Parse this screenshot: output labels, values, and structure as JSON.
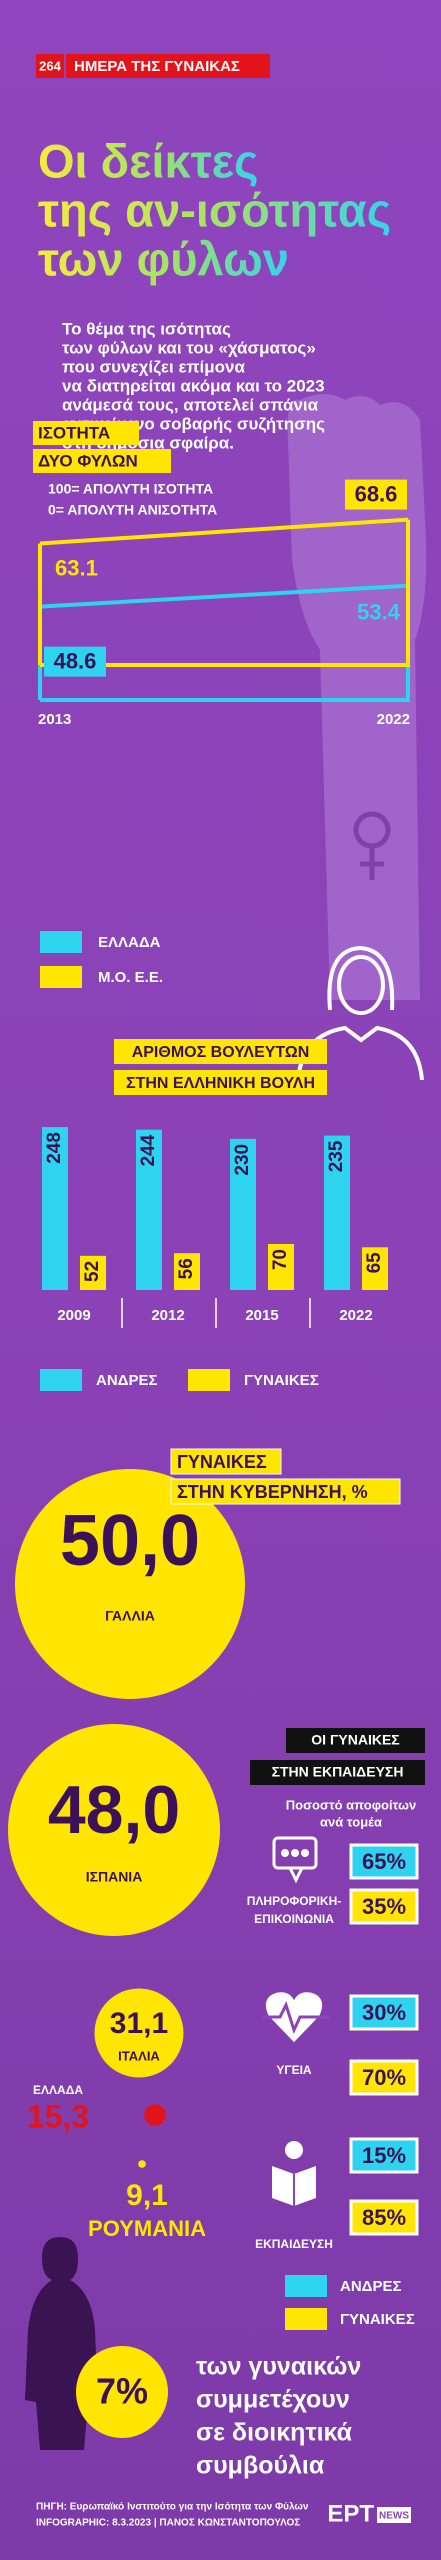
{
  "header": {
    "badge": "264",
    "tag": "ΗΜΕΡΑ ΤΗΣ ΓΥΝΑΙΚΑΣ"
  },
  "title": [
    "Οι δείκτες",
    "της αν-ισότητας",
    "των φύλων"
  ],
  "intro": [
    "Το θέμα της ισότητας",
    "των φύλων και του «χάσματος»",
    "που συνεχίζει επίμονα",
    "να διατηρείται ακόμα και το 2023",
    "ανάμεσά τους, αποτελεί σπάνια",
    "αντικείμενο σοβαρής συζήτησης",
    "στη δημόσια σφαίρα."
  ],
  "equality": {
    "title": [
      "ΙΣΟΤΗΤΑ",
      "ΔΥΟ ΦΥΛΩΝ"
    ],
    "notes": [
      "100= ΑΠΟΛΥΤΗ ΙΣΟΤΗΤΑ",
      "0= ΑΠΟΛΥΤΗ ΑΝΙΣΟΤΗΤΑ"
    ],
    "years": [
      "2013",
      "2022"
    ],
    "series": [
      {
        "name": "ΕΛΛΑΔΑ",
        "color": "#2ed3ef",
        "values": [
          48.6,
          53.4
        ]
      },
      {
        "name": "Μ.Ο. Ε.Ε.",
        "color": "#ffe500",
        "values": [
          63.1,
          68.6
        ]
      }
    ]
  },
  "parliament": {
    "title": [
      "ΑΡΙΘΜΟΣ ΒΟΥΛΕΥΤΩΝ",
      "ΣΤΗΝ ΕΛΛΗΝΙΚΗ ΒΟΥΛΗ"
    ],
    "years": [
      "2009",
      "2012",
      "2015",
      "2022"
    ],
    "series": [
      {
        "name": "ΑΝΔΡΕΣ",
        "color": "#2ed3ef",
        "values": [
          248,
          244,
          230,
          235
        ]
      },
      {
        "name": "ΓΥΝΑΙΚΕΣ",
        "color": "#ffe500",
        "values": [
          52,
          56,
          70,
          65
        ]
      }
    ]
  },
  "government": {
    "title": [
      "ΓΥΝΑΙΚΕΣ",
      "ΣΤΗΝ ΚΥΒΕΡΝΗΣΗ, %"
    ],
    "countries": [
      {
        "name": "ΓΑΛΛΙΑ",
        "value": 50.0,
        "label": "50,0"
      },
      {
        "name": "ΙΣΠΑΝΙΑ",
        "value": 48.0,
        "label": "48,0"
      },
      {
        "name": "ΙΤΑΛΙΑ",
        "value": 31.1,
        "label": "31,1"
      },
      {
        "name": "ΕΛΛΑΔΑ",
        "value": 15.3,
        "label": "15,3"
      },
      {
        "name": "ΡΟΥΜΑΝΙΑ",
        "value": 9.1,
        "label": "9,1"
      }
    ]
  },
  "education": {
    "title": [
      "ΟΙ ΓΥΝΑΙΚΕΣ",
      "ΣΤΗΝ ΕΚΠΑΙΔΕΥΣΗ"
    ],
    "subtitle": [
      "Ποσοστό αποφοίτων",
      "ανά τομέα"
    ],
    "fields": [
      {
        "name": [
          "ΠΛΗΡΟΦΟΡΙΚΗ-",
          "ΕΠΙΚΟΙΝΩΝΙΑ"
        ],
        "men": "65%",
        "women": "35%"
      },
      {
        "name": [
          "ΥΓΕΙΑ"
        ],
        "men": "30%",
        "women": "70%"
      },
      {
        "name": [
          "ΕΚΠΑΙΔΕΥΣΗ"
        ],
        "men": "15%",
        "women": "85%"
      }
    ],
    "legend": [
      "ΑΝΔΡΕΣ",
      "ΓΥΝΑΙΚΕΣ"
    ]
  },
  "boards": {
    "value": "7%",
    "text": [
      "των γυναικών",
      "συμμετέχουν",
      "σε διοικητικά",
      "συμβούλια"
    ]
  },
  "footer": {
    "source": "ΠΗΓΗ: Ευρωπαϊκό Ινστιτούτο για την Ισότητα των Φύλων",
    "credit": "INFOGRAPHIC: 8.3.2023 | ΠΑΝΟΣ ΚΩΝΣΤΑΝΤΟΠΟΥΛΟΣ",
    "logo": "ΕΡΤ",
    "logo_sub": "NEWS"
  }
}
